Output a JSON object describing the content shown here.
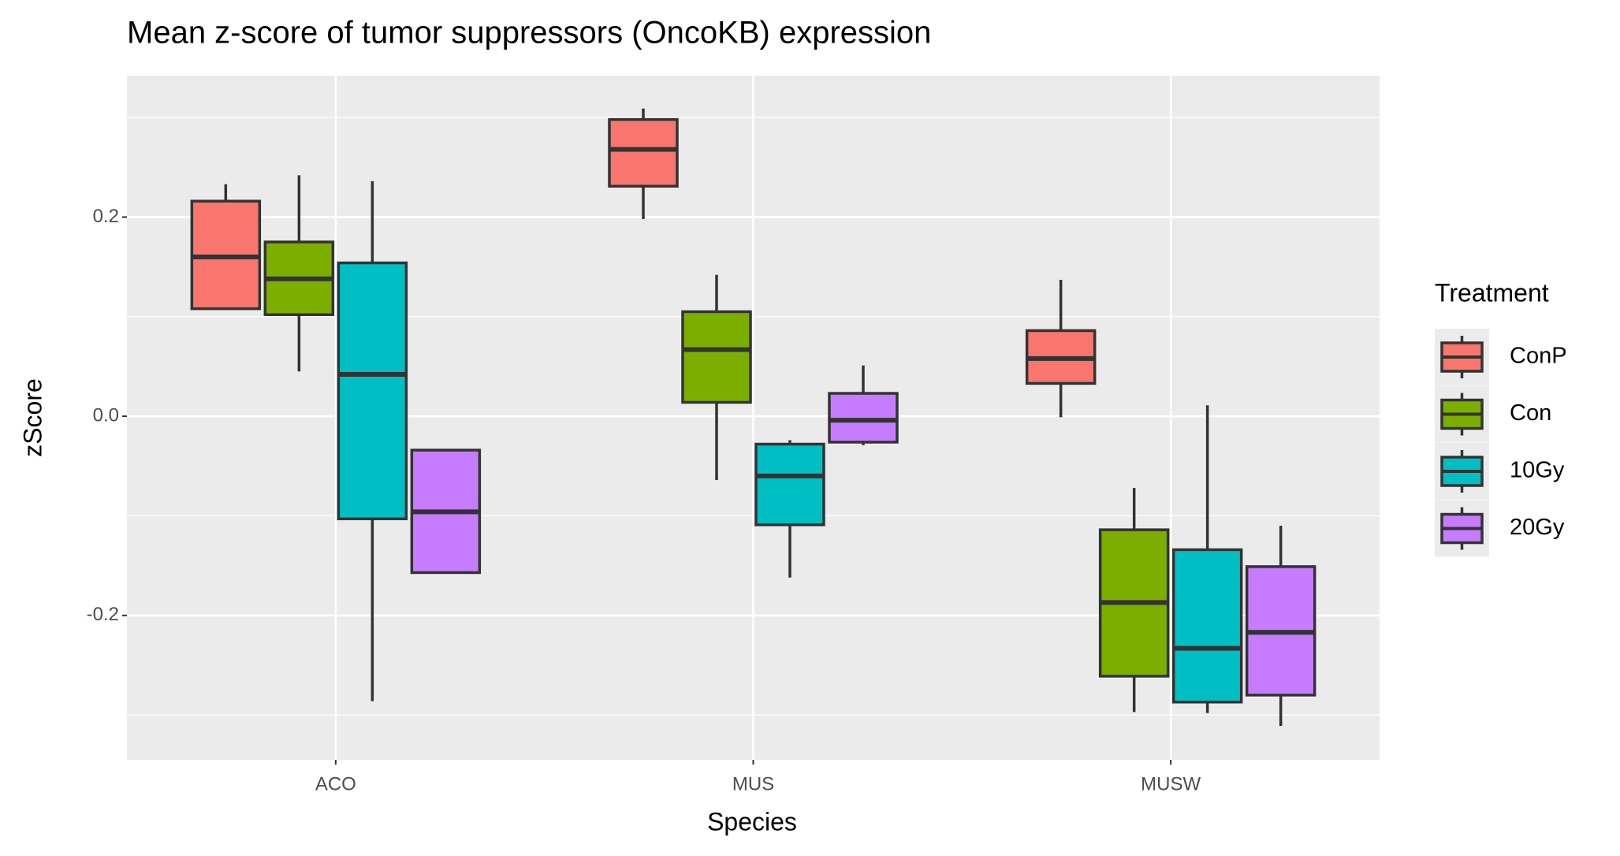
{
  "chart_data": {
    "type": "boxplot",
    "title": "Mean z-score of tumor suppressors (OncoKB) expression",
    "x_label": "Species",
    "y_label": "zScore",
    "categories": [
      "ACO",
      "MUS",
      "MUSW"
    ],
    "legend_title": "Treatment",
    "legend_position": "right",
    "grid": true,
    "ylim": [
      -0.345,
      0.342
    ],
    "yticks": [
      {
        "value": -0.2,
        "label": "-0.2"
      },
      {
        "value": 0.0,
        "label": "0.0"
      },
      {
        "value": 0.2,
        "label": "0.2"
      }
    ],
    "minor_yticks": [
      -0.3,
      -0.1,
      0.1,
      0.3
    ],
    "series": [
      {
        "name": "ConP",
        "color": "#f8766d",
        "values": [
          {
            "min": 0.108,
            "q1": 0.108,
            "median": 0.16,
            "q3": 0.216,
            "max": 0.233
          },
          {
            "min": 0.198,
            "q1": 0.231,
            "median": 0.268,
            "q3": 0.298,
            "max": 0.309
          },
          {
            "min": -0.001,
            "q1": 0.033,
            "median": 0.058,
            "q3": 0.086,
            "max": 0.137
          }
        ]
      },
      {
        "name": "Con",
        "color": "#7cae00",
        "values": [
          {
            "min": 0.045,
            "q1": 0.102,
            "median": 0.138,
            "q3": 0.175,
            "max": 0.242
          },
          {
            "min": -0.064,
            "q1": 0.014,
            "median": 0.067,
            "q3": 0.105,
            "max": 0.142
          },
          {
            "min": -0.297,
            "q1": -0.261,
            "median": -0.187,
            "q3": -0.114,
            "max": -0.072
          }
        ]
      },
      {
        "name": "10Gy",
        "color": "#00bfc4",
        "values": [
          {
            "min": -0.286,
            "q1": -0.103,
            "median": 0.042,
            "q3": 0.154,
            "max": 0.236
          },
          {
            "min": -0.162,
            "q1": -0.109,
            "median": -0.06,
            "q3": -0.028,
            "max": -0.024
          },
          {
            "min": -0.298,
            "q1": -0.287,
            "median": -0.233,
            "q3": -0.134,
            "max": 0.011
          }
        ]
      },
      {
        "name": "20Gy",
        "color": "#c77cff",
        "values": [
          {
            "min": -0.157,
            "q1": -0.157,
            "median": -0.096,
            "q3": -0.034,
            "max": -0.034
          },
          {
            "min": -0.029,
            "q1": -0.026,
            "median": -0.004,
            "q3": 0.023,
            "max": 0.051
          },
          {
            "min": -0.311,
            "q1": -0.28,
            "median": -0.217,
            "q3": -0.151,
            "max": -0.11
          }
        ]
      }
    ]
  }
}
